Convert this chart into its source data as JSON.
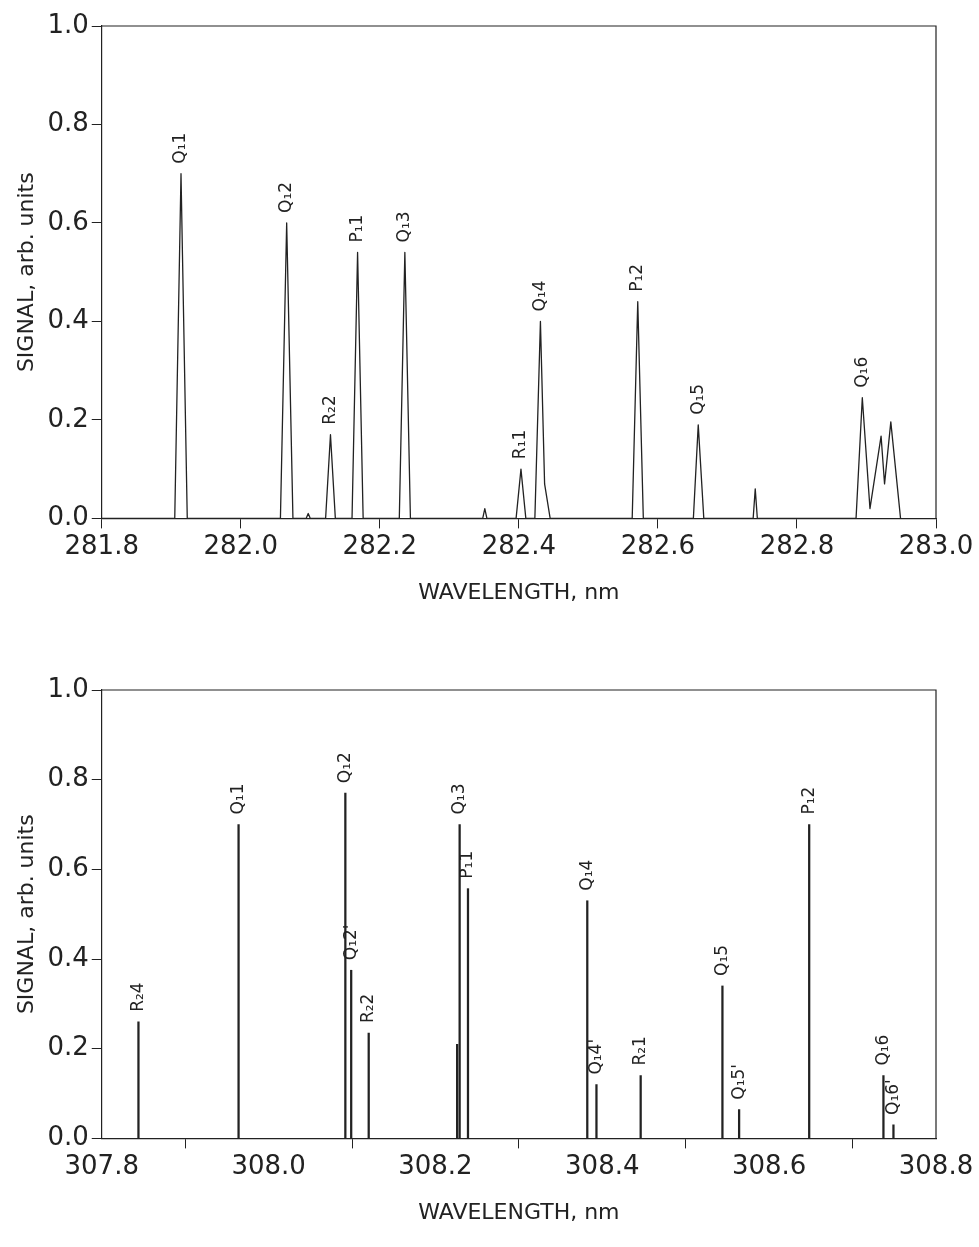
{
  "chart_data": [
    {
      "type": "line",
      "xlabel": "WAVELENGTH, nm",
      "ylabel": "SIGNAL, arb. units",
      "color": "#222222",
      "legend": false,
      "grid": false,
      "marker": "none",
      "x": [
        281.8,
        281.905,
        281.914,
        281.923,
        282.057,
        282.066,
        282.075,
        282.094,
        282.097,
        282.1,
        282.122,
        282.129,
        282.136,
        282.16,
        282.168,
        282.176,
        282.228,
        282.236,
        282.244,
        282.348,
        282.351,
        282.354,
        282.396,
        282.403,
        282.41,
        282.423,
        282.431,
        282.437,
        282.445,
        282.563,
        282.571,
        282.579,
        282.651,
        282.658,
        282.666,
        282.737,
        282.74,
        282.743,
        282.885,
        282.894,
        282.905,
        282.921,
        282.926,
        282.935,
        282.949
      ],
      "values": [
        0,
        0,
        0.7,
        0,
        0,
        0.6,
        0,
        0,
        0.01,
        0,
        0,
        0.17,
        0,
        0,
        0.54,
        0,
        0,
        0.54,
        0,
        0,
        0.02,
        0,
        0,
        0.1,
        0,
        0,
        0.4,
        0.07,
        0,
        0,
        0.44,
        0,
        0,
        0.19,
        0,
        0,
        0.06,
        0,
        0,
        0.245,
        0.02,
        0.167,
        0.07,
        0.196,
        0
      ],
      "xlim": [
        281.8,
        283.0
      ],
      "xticks": [
        {
          "value": 281.8,
          "label": "281.8"
        },
        {
          "value": 282.0,
          "label": "282.0"
        },
        {
          "value": 282.2,
          "label": "282.2"
        },
        {
          "value": 282.4,
          "label": "282.4"
        },
        {
          "value": 282.6,
          "label": "282.6"
        },
        {
          "value": 282.8,
          "label": "282.8"
        },
        {
          "value": 283.0,
          "label": "283.0"
        }
      ],
      "ylim": [
        0,
        1
      ],
      "yticks": [
        {
          "value": 0,
          "label": "0.0"
        },
        {
          "value": 0.2,
          "label": "0.2"
        },
        {
          "value": 0.4,
          "label": "0.4"
        },
        {
          "value": 0.6,
          "label": "0.6"
        },
        {
          "value": 0.8,
          "label": "0.8"
        },
        {
          "value": 1,
          "label": "1.0"
        }
      ],
      "annotations": [
        {
          "text": "Q₁1",
          "x": 281.914,
          "y": 0.7
        },
        {
          "text": "Q₁2",
          "x": 282.066,
          "y": 0.6
        },
        {
          "text": "R₂2",
          "x": 282.129,
          "y": 0.17
        },
        {
          "text": "P₁1",
          "x": 282.168,
          "y": 0.54
        },
        {
          "text": "Q₁3",
          "x": 282.236,
          "y": 0.54
        },
        {
          "text": "R₁1",
          "x": 282.403,
          "y": 0.1
        },
        {
          "text": "Q₁4",
          "x": 282.431,
          "y": 0.4
        },
        {
          "text": "P₁2",
          "x": 282.571,
          "y": 0.44
        },
        {
          "text": "Q₁5",
          "x": 282.658,
          "y": 0.19
        },
        {
          "text": "Q₁6",
          "x": 282.894,
          "y": 0.245
        }
      ]
    },
    {
      "type": "bar",
      "xlabel": "WAVELENGTH, nm",
      "ylabel": "SIGNAL, arb. units",
      "color": "#222222",
      "legend": false,
      "grid": false,
      "x": [
        307.844,
        307.964,
        308.092,
        308.099,
        308.12,
        308.226,
        308.229,
        308.239,
        308.382,
        308.393,
        308.446,
        308.544,
        308.564,
        308.648,
        308.737,
        308.749
      ],
      "values": [
        0.26,
        0.7,
        0.77,
        0.375,
        0.235,
        0.21,
        0.7,
        0.557,
        0.53,
        0.12,
        0.14,
        0.34,
        0.064,
        0.7,
        0.14,
        0.03
      ],
      "xlim": [
        307.8,
        308.8
      ],
      "xticks": [
        {
          "value": 307.8,
          "label": "307.8"
        },
        {
          "value": 308.0,
          "label": "308.0"
        },
        {
          "value": 308.2,
          "label": "308.2"
        },
        {
          "value": 308.4,
          "label": "308.4"
        },
        {
          "value": 308.6,
          "label": "308.6"
        },
        {
          "value": 308.8,
          "label": "308.8"
        }
      ],
      "ylim": [
        0,
        1
      ],
      "yticks": [
        {
          "value": 0,
          "label": "0.0"
        },
        {
          "value": 0.2,
          "label": "0.2"
        },
        {
          "value": 0.4,
          "label": "0.4"
        },
        {
          "value": 0.6,
          "label": "0.6"
        },
        {
          "value": 0.8,
          "label": "0.8"
        },
        {
          "value": 1,
          "label": "1.0"
        }
      ],
      "annotations": [
        {
          "text": "R₂4",
          "x": 307.844,
          "y": 0.26
        },
        {
          "text": "Q₁1",
          "x": 307.964,
          "y": 0.7
        },
        {
          "text": "Q₁2",
          "x": 308.092,
          "y": 0.77
        },
        {
          "text": "Q₁2'",
          "x": 308.099,
          "y": 0.375
        },
        {
          "text": "R₂2",
          "x": 308.12,
          "y": 0.235
        },
        {
          "text": "Q₁3",
          "x": 308.229,
          "y": 0.7
        },
        {
          "text": "P₁1",
          "x": 308.239,
          "y": 0.557
        },
        {
          "text": "Q₁4",
          "x": 308.382,
          "y": 0.53
        },
        {
          "text": "Q₁4'",
          "x": 308.393,
          "y": 0.12
        },
        {
          "text": "R₂1",
          "x": 308.446,
          "y": 0.14
        },
        {
          "text": "Q₁5",
          "x": 308.544,
          "y": 0.34
        },
        {
          "text": "Q₁5'",
          "x": 308.564,
          "y": 0.064
        },
        {
          "text": "P₁2",
          "x": 308.648,
          "y": 0.7
        },
        {
          "text": "Q₁6",
          "x": 308.737,
          "y": 0.14
        },
        {
          "text": "Q₁6'",
          "x": 308.749,
          "y": 0.03
        }
      ]
    }
  ]
}
